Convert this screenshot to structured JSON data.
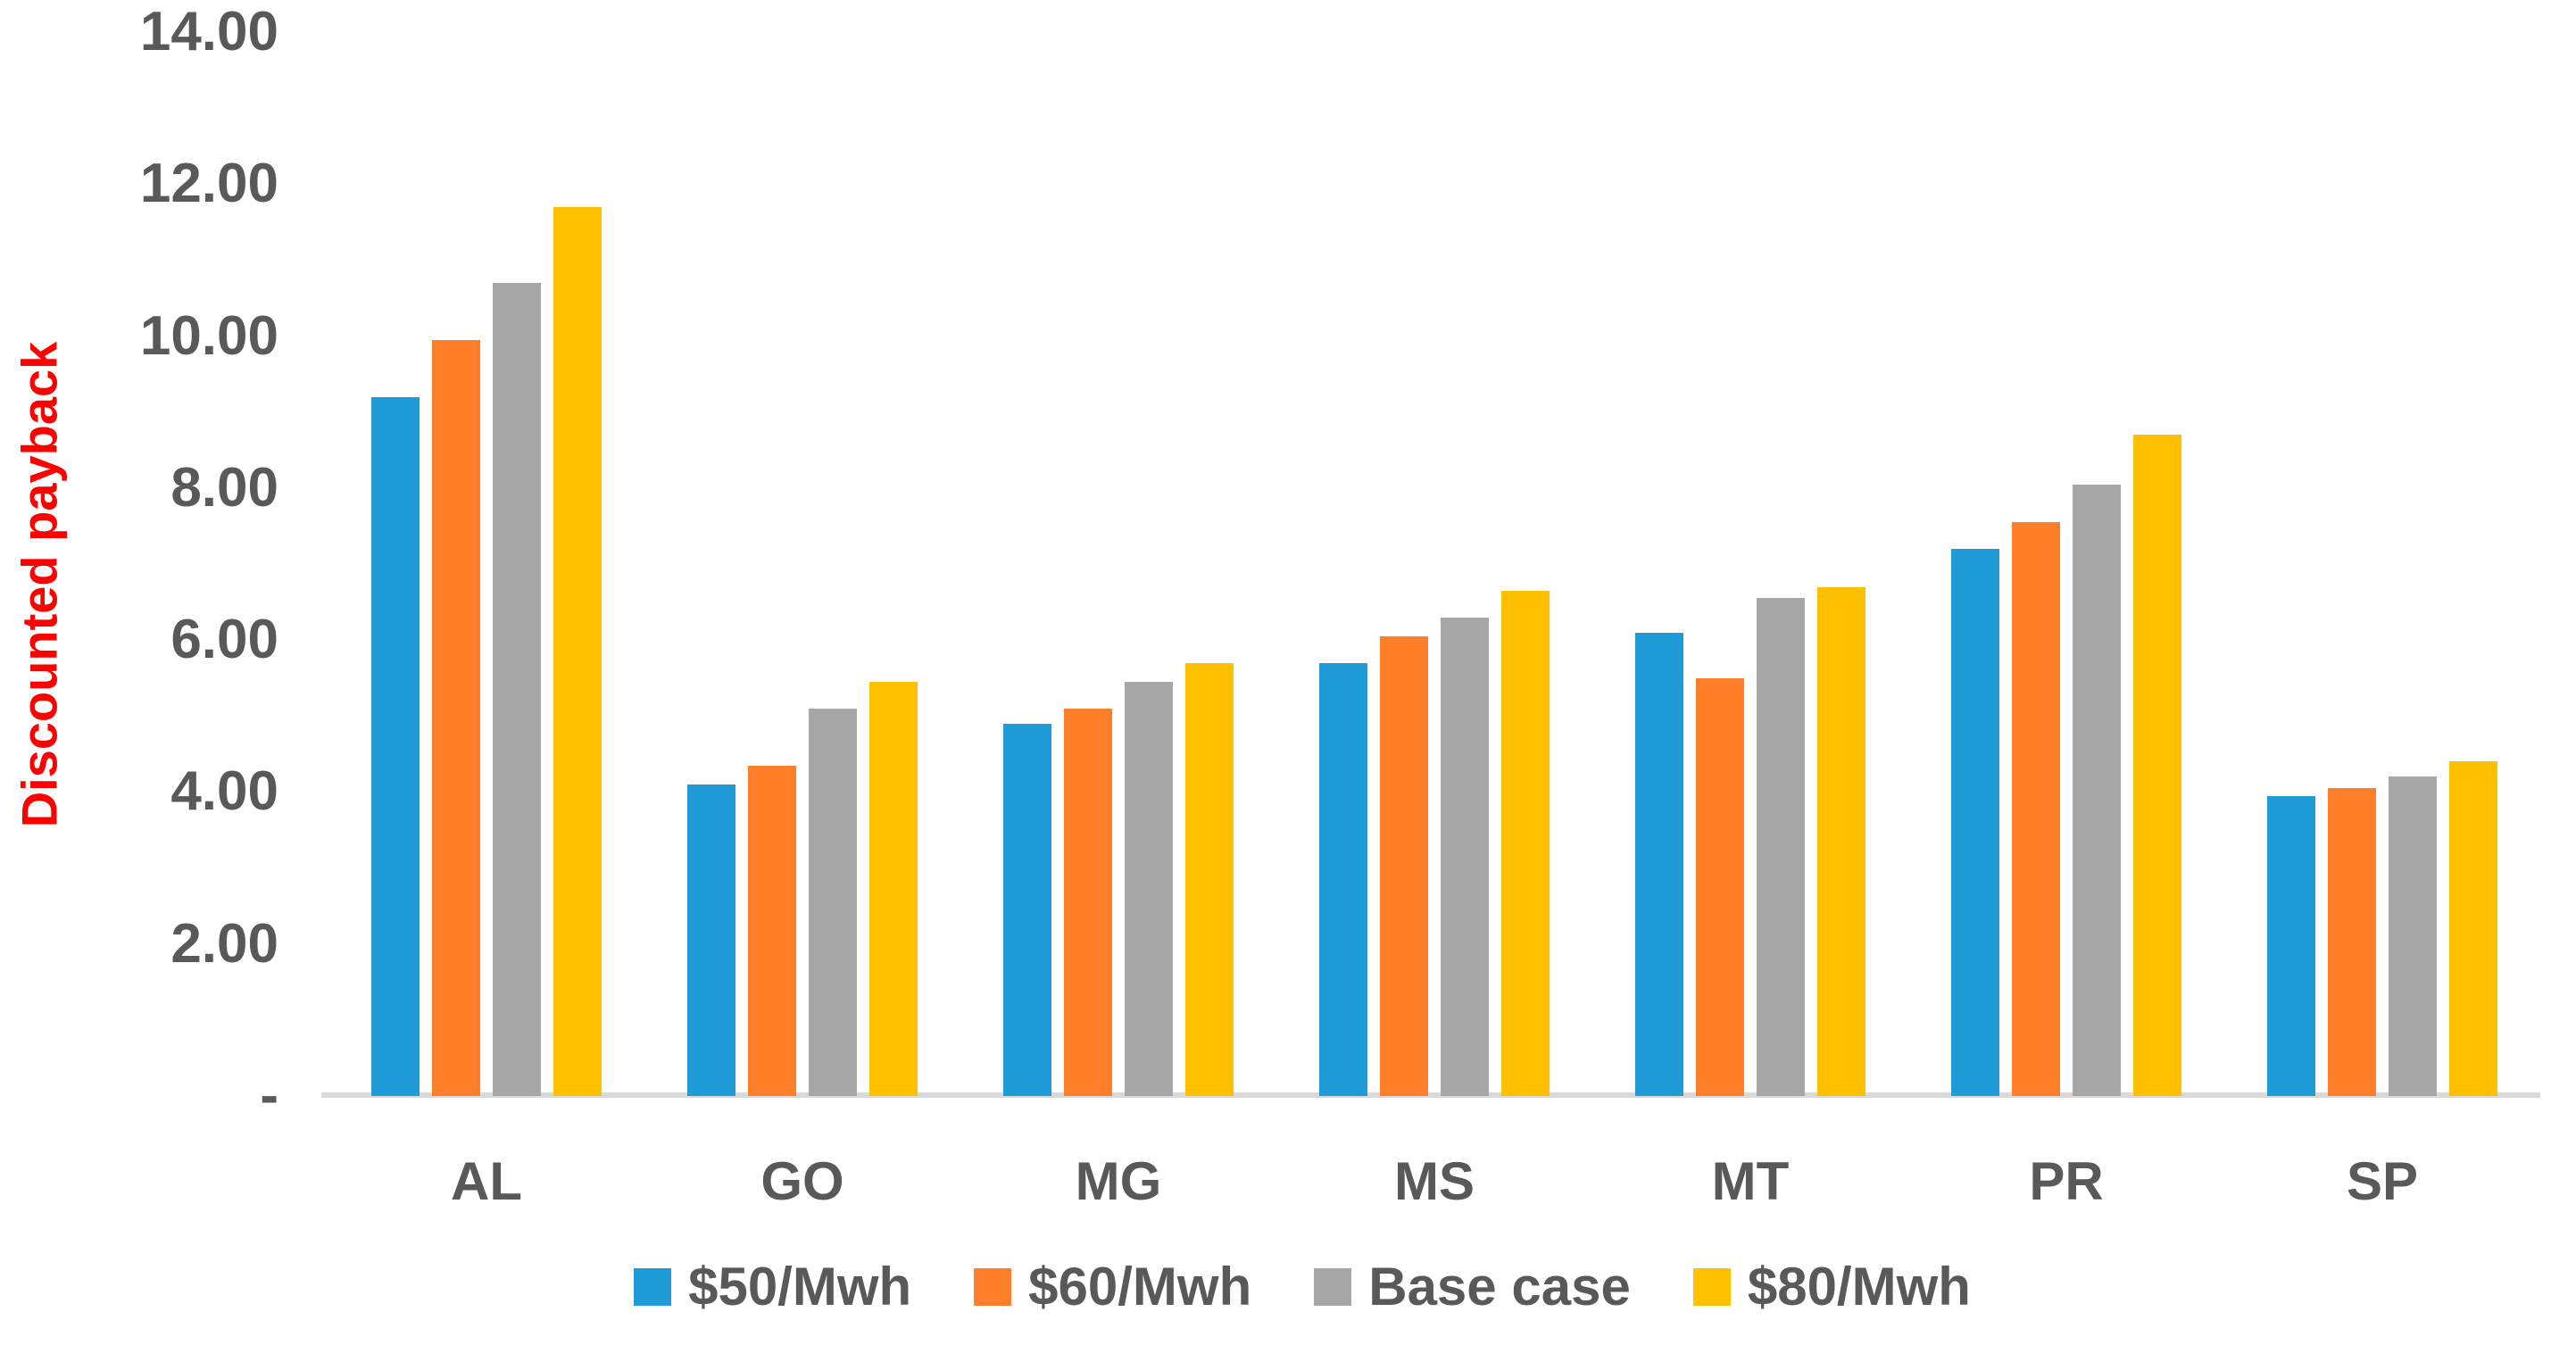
{
  "chart_data": {
    "type": "bar",
    "title": "",
    "xlabel": "",
    "ylabel": "Discounted payback",
    "categories": [
      "AL",
      "GO",
      "MG",
      "MS",
      "MT",
      "PR",
      "SP"
    ],
    "series": [
      {
        "name": "$50/Mwh",
        "color": "#1F9BD8",
        "values": [
          9.2,
          4.1,
          4.9,
          5.7,
          6.1,
          7.2,
          3.95
        ]
      },
      {
        "name": "$60/Mwh",
        "color": "#FF7E29",
        "values": [
          9.95,
          4.35,
          5.1,
          6.05,
          5.5,
          7.55,
          4.05
        ]
      },
      {
        "name": "Base case",
        "color": "#A6A6A6",
        "values": [
          10.7,
          5.1,
          5.45,
          6.3,
          6.55,
          8.05,
          4.2
        ]
      },
      {
        "name": "$80/Mwh",
        "color": "#FFC000",
        "values": [
          11.7,
          5.45,
          5.7,
          6.65,
          6.7,
          8.7,
          4.4
        ]
      }
    ],
    "ylim": [
      0,
      14
    ],
    "yticks": [
      {
        "value": 14,
        "label": "14.00"
      },
      {
        "value": 12,
        "label": "12.00"
      },
      {
        "value": 10,
        "label": "10.00"
      },
      {
        "value": 8,
        "label": "8.00"
      },
      {
        "value": 6,
        "label": "6.00"
      },
      {
        "value": 4,
        "label": "4.00"
      },
      {
        "value": 2,
        "label": "2.00"
      },
      {
        "value": 0,
        "label": "-"
      }
    ],
    "grid": false,
    "legend_position": "bottom",
    "colors": {
      "axis_title": "#FF0000",
      "tick_text": "#595959",
      "category_text": "#595959",
      "legend_text": "#595959",
      "axis_line": "#D9D9D9",
      "background": "#FFFFFF"
    }
  }
}
